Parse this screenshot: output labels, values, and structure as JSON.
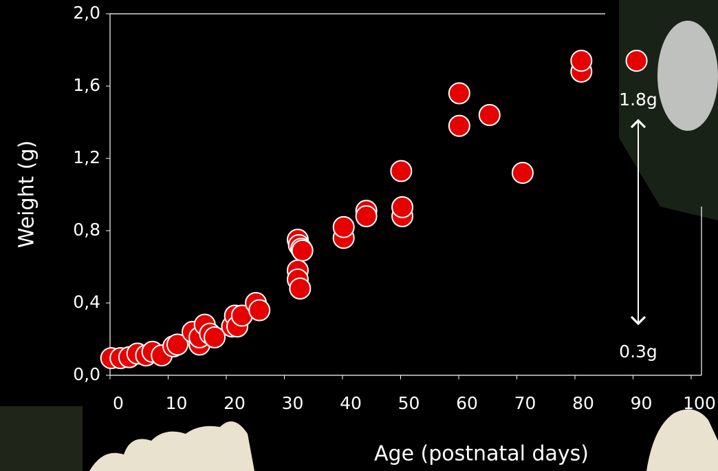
{
  "chart_data": {
    "type": "scatter",
    "x_label": "Age (postnatal days)",
    "y_label": "Weight (g)",
    "xlim": [
      0,
      100
    ],
    "ylim": [
      0,
      2
    ],
    "xticks": [
      0,
      10,
      20,
      30,
      40,
      50,
      60,
      70,
      80,
      90,
      100
    ],
    "yticks": [
      {
        "value": 0,
        "label": "0,0"
      },
      {
        "value": 0.4,
        "label": "0,4"
      },
      {
        "value": 0.8,
        "label": "0,8"
      },
      {
        "value": 1.2,
        "label": "1,2"
      },
      {
        "value": 1.6,
        "label": "1,6"
      },
      {
        "value": 2,
        "label": "2,0"
      }
    ],
    "color": "#e60000",
    "x": [
      0.2,
      1.8,
      3.3,
      4.7,
      6.2,
      7.3,
      8.9,
      10.9,
      11.6,
      14.2,
      15.4,
      15.4,
      16.3,
      17.2,
      18.0,
      21.0,
      21.5,
      21.9,
      22.7,
      25.1,
      25.7,
      32.3,
      32.5,
      32.9,
      33.1,
      32.3,
      32.3,
      32.7,
      40.2,
      40.2,
      44.1,
      44.1,
      50.3,
      50.3,
      50.1,
      60.1,
      60.1,
      65.3,
      71.0,
      81.1,
      81.1,
      90.6
    ],
    "values": [
      0.095,
      0.095,
      0.1,
      0.12,
      0.11,
      0.13,
      0.11,
      0.16,
      0.17,
      0.24,
      0.17,
      0.21,
      0.28,
      0.23,
      0.21,
      0.27,
      0.33,
      0.27,
      0.33,
      0.4,
      0.36,
      0.75,
      0.72,
      0.7,
      0.69,
      0.58,
      0.53,
      0.48,
      0.76,
      0.82,
      0.91,
      0.88,
      0.88,
      0.93,
      1.13,
      1.56,
      1.38,
      1.44,
      1.12,
      1.68,
      1.74,
      1.74
    ],
    "annotations": [
      "1.8g",
      "0.3g"
    ]
  }
}
